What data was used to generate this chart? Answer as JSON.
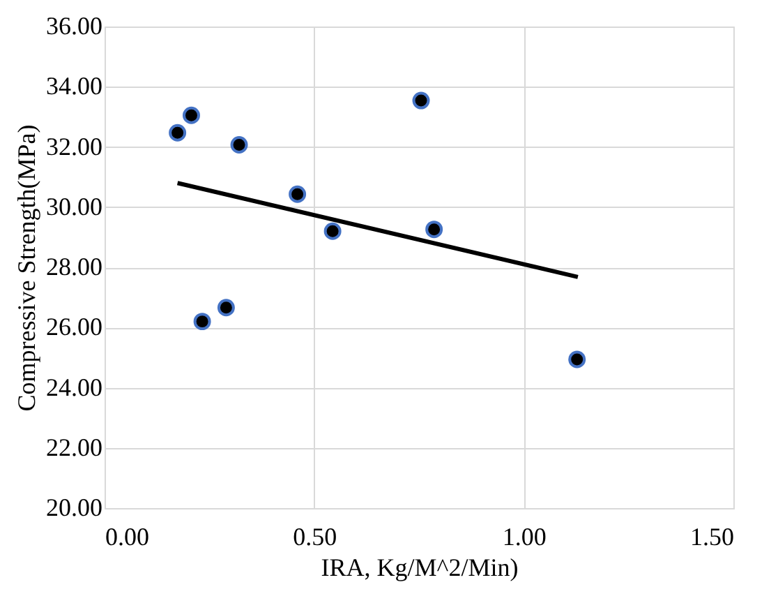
{
  "chart_data": {
    "type": "scatter",
    "xlabel": "IRA, Kg/M^2/Min)",
    "ylabel": "Compressive Strength(MPa)",
    "xlim": [
      0,
      1.5
    ],
    "xticks": [
      {
        "value": 0,
        "label": "0.00"
      },
      {
        "value": 0.5,
        "label": "0.50"
      },
      {
        "value": 1,
        "label": "1.00"
      },
      {
        "value": 1.5,
        "label": "1.50"
      }
    ],
    "ylim": [
      20,
      36
    ],
    "yticks": [
      {
        "value": 20,
        "label": "20.00"
      },
      {
        "value": 22,
        "label": "22.00"
      },
      {
        "value": 24,
        "label": "24.00"
      },
      {
        "value": 26,
        "label": "26.00"
      },
      {
        "value": 28,
        "label": "28.00"
      },
      {
        "value": 30,
        "label": "30.00"
      },
      {
        "value": 32,
        "label": "32.00"
      },
      {
        "value": 34,
        "label": "34.00"
      },
      {
        "value": 36,
        "label": "36.00"
      }
    ],
    "grid": true,
    "series": [
      {
        "color": "#000000",
        "x": [
          0.174,
          0.207,
          0.321,
          0.233,
          0.29,
          0.46,
          0.544,
          0.755,
          0.786,
          1.127
        ],
        "marker": "circle",
        "values": [
          32.47,
          33.05,
          32.07,
          26.2,
          26.66,
          30.43,
          29.2,
          33.54,
          29.26,
          24.94
        ]
      },
      {
        "type": "line",
        "color": "#000000",
        "x": [
          0.174,
          1.129
        ],
        "values": [
          30.8,
          27.68
        ]
      }
    ]
  }
}
